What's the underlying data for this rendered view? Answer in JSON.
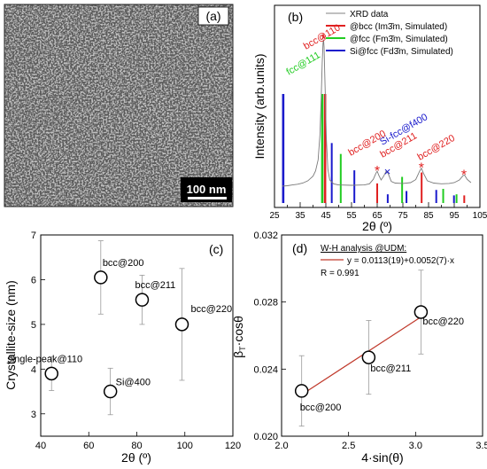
{
  "figure": {
    "panel_labels": [
      "(a)",
      "(b)",
      "(c)",
      "(d)"
    ]
  },
  "micrograph": {
    "scale_bar": "100 nm"
  },
  "chart_data": [
    {
      "panel": "(b)",
      "type": "line",
      "xlabel": "2θ (º)",
      "ylabel": "Intensity (arb.units)",
      "xlim": [
        25,
        105
      ],
      "xticks": [
        25,
        30,
        35,
        40,
        45,
        50,
        55,
        60,
        65,
        70,
        75,
        80,
        85,
        90,
        95,
        100,
        105
      ],
      "legend": {
        "placement": "top-right",
        "entries": [
          {
            "label": "XRD data",
            "color": "#808080"
          },
          {
            "label": "@bcc (Im3̄m, Simulated)",
            "color": "#e02020"
          },
          {
            "label": "@fcc (Fm3̄m, Simulated)",
            "color": "#22cc22"
          },
          {
            "label": "Si@fcc (Fd3̄m, Simulated)",
            "color": "#1a1acc"
          }
        ]
      },
      "xrd_series": [
        [
          28,
          23.6
        ],
        [
          30,
          23.7
        ],
        [
          32,
          23.9
        ],
        [
          34,
          24.1
        ],
        [
          36,
          24.4
        ],
        [
          38,
          25.0
        ],
        [
          40,
          26.2
        ],
        [
          41,
          27.6
        ],
        [
          42,
          30.5
        ],
        [
          42.7,
          37
        ],
        [
          43.2,
          47
        ],
        [
          43.6,
          56
        ],
        [
          43.9,
          61
        ],
        [
          44.1,
          62
        ],
        [
          44.3,
          60
        ],
        [
          44.7,
          50
        ],
        [
          45.2,
          36
        ],
        [
          45.8,
          28
        ],
        [
          46.5,
          25.2
        ],
        [
          48,
          24.2
        ],
        [
          50,
          23.9
        ],
        [
          55,
          23.8
        ],
        [
          60,
          23.9
        ],
        [
          62,
          24.2
        ],
        [
          63.5,
          25.4
        ],
        [
          64.5,
          27
        ],
        [
          65.0,
          27.5
        ],
        [
          65.6,
          26.5
        ],
        [
          66.5,
          25.2
        ],
        [
          67.5,
          26.2
        ],
        [
          68.5,
          27.5
        ],
        [
          69.2,
          27
        ],
        [
          70.5,
          24.8
        ],
        [
          72,
          24.4
        ],
        [
          75,
          24.3
        ],
        [
          78,
          24.5
        ],
        [
          80,
          25.3
        ],
        [
          81.5,
          27.5
        ],
        [
          82.2,
          28.3
        ],
        [
          83,
          27
        ],
        [
          84.5,
          25
        ],
        [
          87,
          24.4
        ],
        [
          90,
          24.2
        ],
        [
          93,
          24.3
        ],
        [
          95,
          24.5
        ],
        [
          97,
          25.2
        ],
        [
          98.5,
          26.4
        ],
        [
          99,
          26.5
        ],
        [
          100,
          25.4
        ],
        [
          101.5,
          24.5
        ]
      ],
      "simulated_peaks": [
        {
          "phase": "bcc",
          "color": "#e02020",
          "positions": [
            44.7,
            65.0,
            82.3,
            98.9
          ],
          "heights": [
            1.0,
            0.18,
            0.28,
            0.07
          ]
        },
        {
          "phase": "fcc",
          "color": "#22cc22",
          "positions": [
            43.6,
            50.8,
            74.7,
            90.7,
            95.9
          ],
          "heights": [
            1.0,
            0.45,
            0.24,
            0.13,
            0.08
          ]
        },
        {
          "phase": "Si",
          "color": "#1a1acc",
          "positions": [
            28.4,
            47.3,
            56.1,
            69.1,
            76.4,
            88.0,
            94.9
          ],
          "heights": [
            1.0,
            0.55,
            0.3,
            0.08,
            0.11,
            0.12,
            0.07
          ]
        }
      ],
      "annotations": [
        {
          "text": "bcc@110",
          "color": "#e02020",
          "marker": "*",
          "x": 44.1,
          "y": 62
        },
        {
          "text": "fcc@111",
          "color": "#22cc22"
        },
        {
          "text": "bcc@200",
          "color": "#e02020",
          "marker": "*",
          "x": 65.0,
          "y": 27.5
        },
        {
          "text": "Si-fcc@f400",
          "color": "#1a1acc",
          "marker": "×",
          "x": 69.0,
          "y": 27.5
        },
        {
          "text": "bcc@211",
          "color": "#e02020",
          "marker": "*",
          "x": 82.2,
          "y": 28.3
        },
        {
          "text": "bcc@220",
          "color": "#e02020",
          "marker": "*",
          "x": 98.8,
          "y": 26.5
        }
      ]
    },
    {
      "panel": "(c)",
      "type": "scatter",
      "xlabel": "2θ (º)",
      "ylabel": "Crystallite-size (nm)",
      "xlim": [
        40,
        120
      ],
      "ylim": [
        2.5,
        7
      ],
      "xticks": [
        40,
        60,
        80,
        100,
        120
      ],
      "yticks": [
        3,
        4,
        5,
        6,
        7
      ],
      "points": [
        {
          "label": "single-peak@110",
          "x": 44.5,
          "y": 3.9,
          "err": 0.38
        },
        {
          "label": "bcc@200",
          "x": 65.0,
          "y": 6.05,
          "err": 0.82
        },
        {
          "label": "Si@400",
          "x": 69.0,
          "y": 3.5,
          "err": 0.52
        },
        {
          "label": "bcc@211",
          "x": 82.2,
          "y": 5.55,
          "err": 0.55
        },
        {
          "label": "bcc@220",
          "x": 98.8,
          "y": 5.0,
          "err": 1.25
        }
      ]
    },
    {
      "panel": "(d)",
      "type": "scatter",
      "xlabel": "4·sin(θ)",
      "ylabel": "βT·cosθ",
      "xlim": [
        2.0,
        3.5
      ],
      "ylim": [
        0.02,
        0.032
      ],
      "xticks": [
        "2.0",
        "2.5",
        "3.0",
        "3.5"
      ],
      "yticks": [
        "0.020",
        "0.024",
        "0.028",
        "0.032"
      ],
      "legend": {
        "title": "W-H analysis @UDM:",
        "entries": [
          {
            "label": "y = 0.0113(19)+0.0052(7)·x",
            "color": "#c0392b"
          }
        ],
        "r_text": "R = 0.991"
      },
      "fit": {
        "intercept": 0.0113,
        "slope": 0.0052,
        "x_range": [
          2.15,
          3.04
        ]
      },
      "points": [
        {
          "label": "bcc@200",
          "x": 2.15,
          "y": 0.0227,
          "err": 0.0021
        },
        {
          "label": "bcc@211",
          "x": 2.65,
          "y": 0.0247,
          "err": 0.0022
        },
        {
          "label": "bcc@220",
          "x": 3.04,
          "y": 0.0274,
          "err": 0.0025
        }
      ]
    }
  ]
}
